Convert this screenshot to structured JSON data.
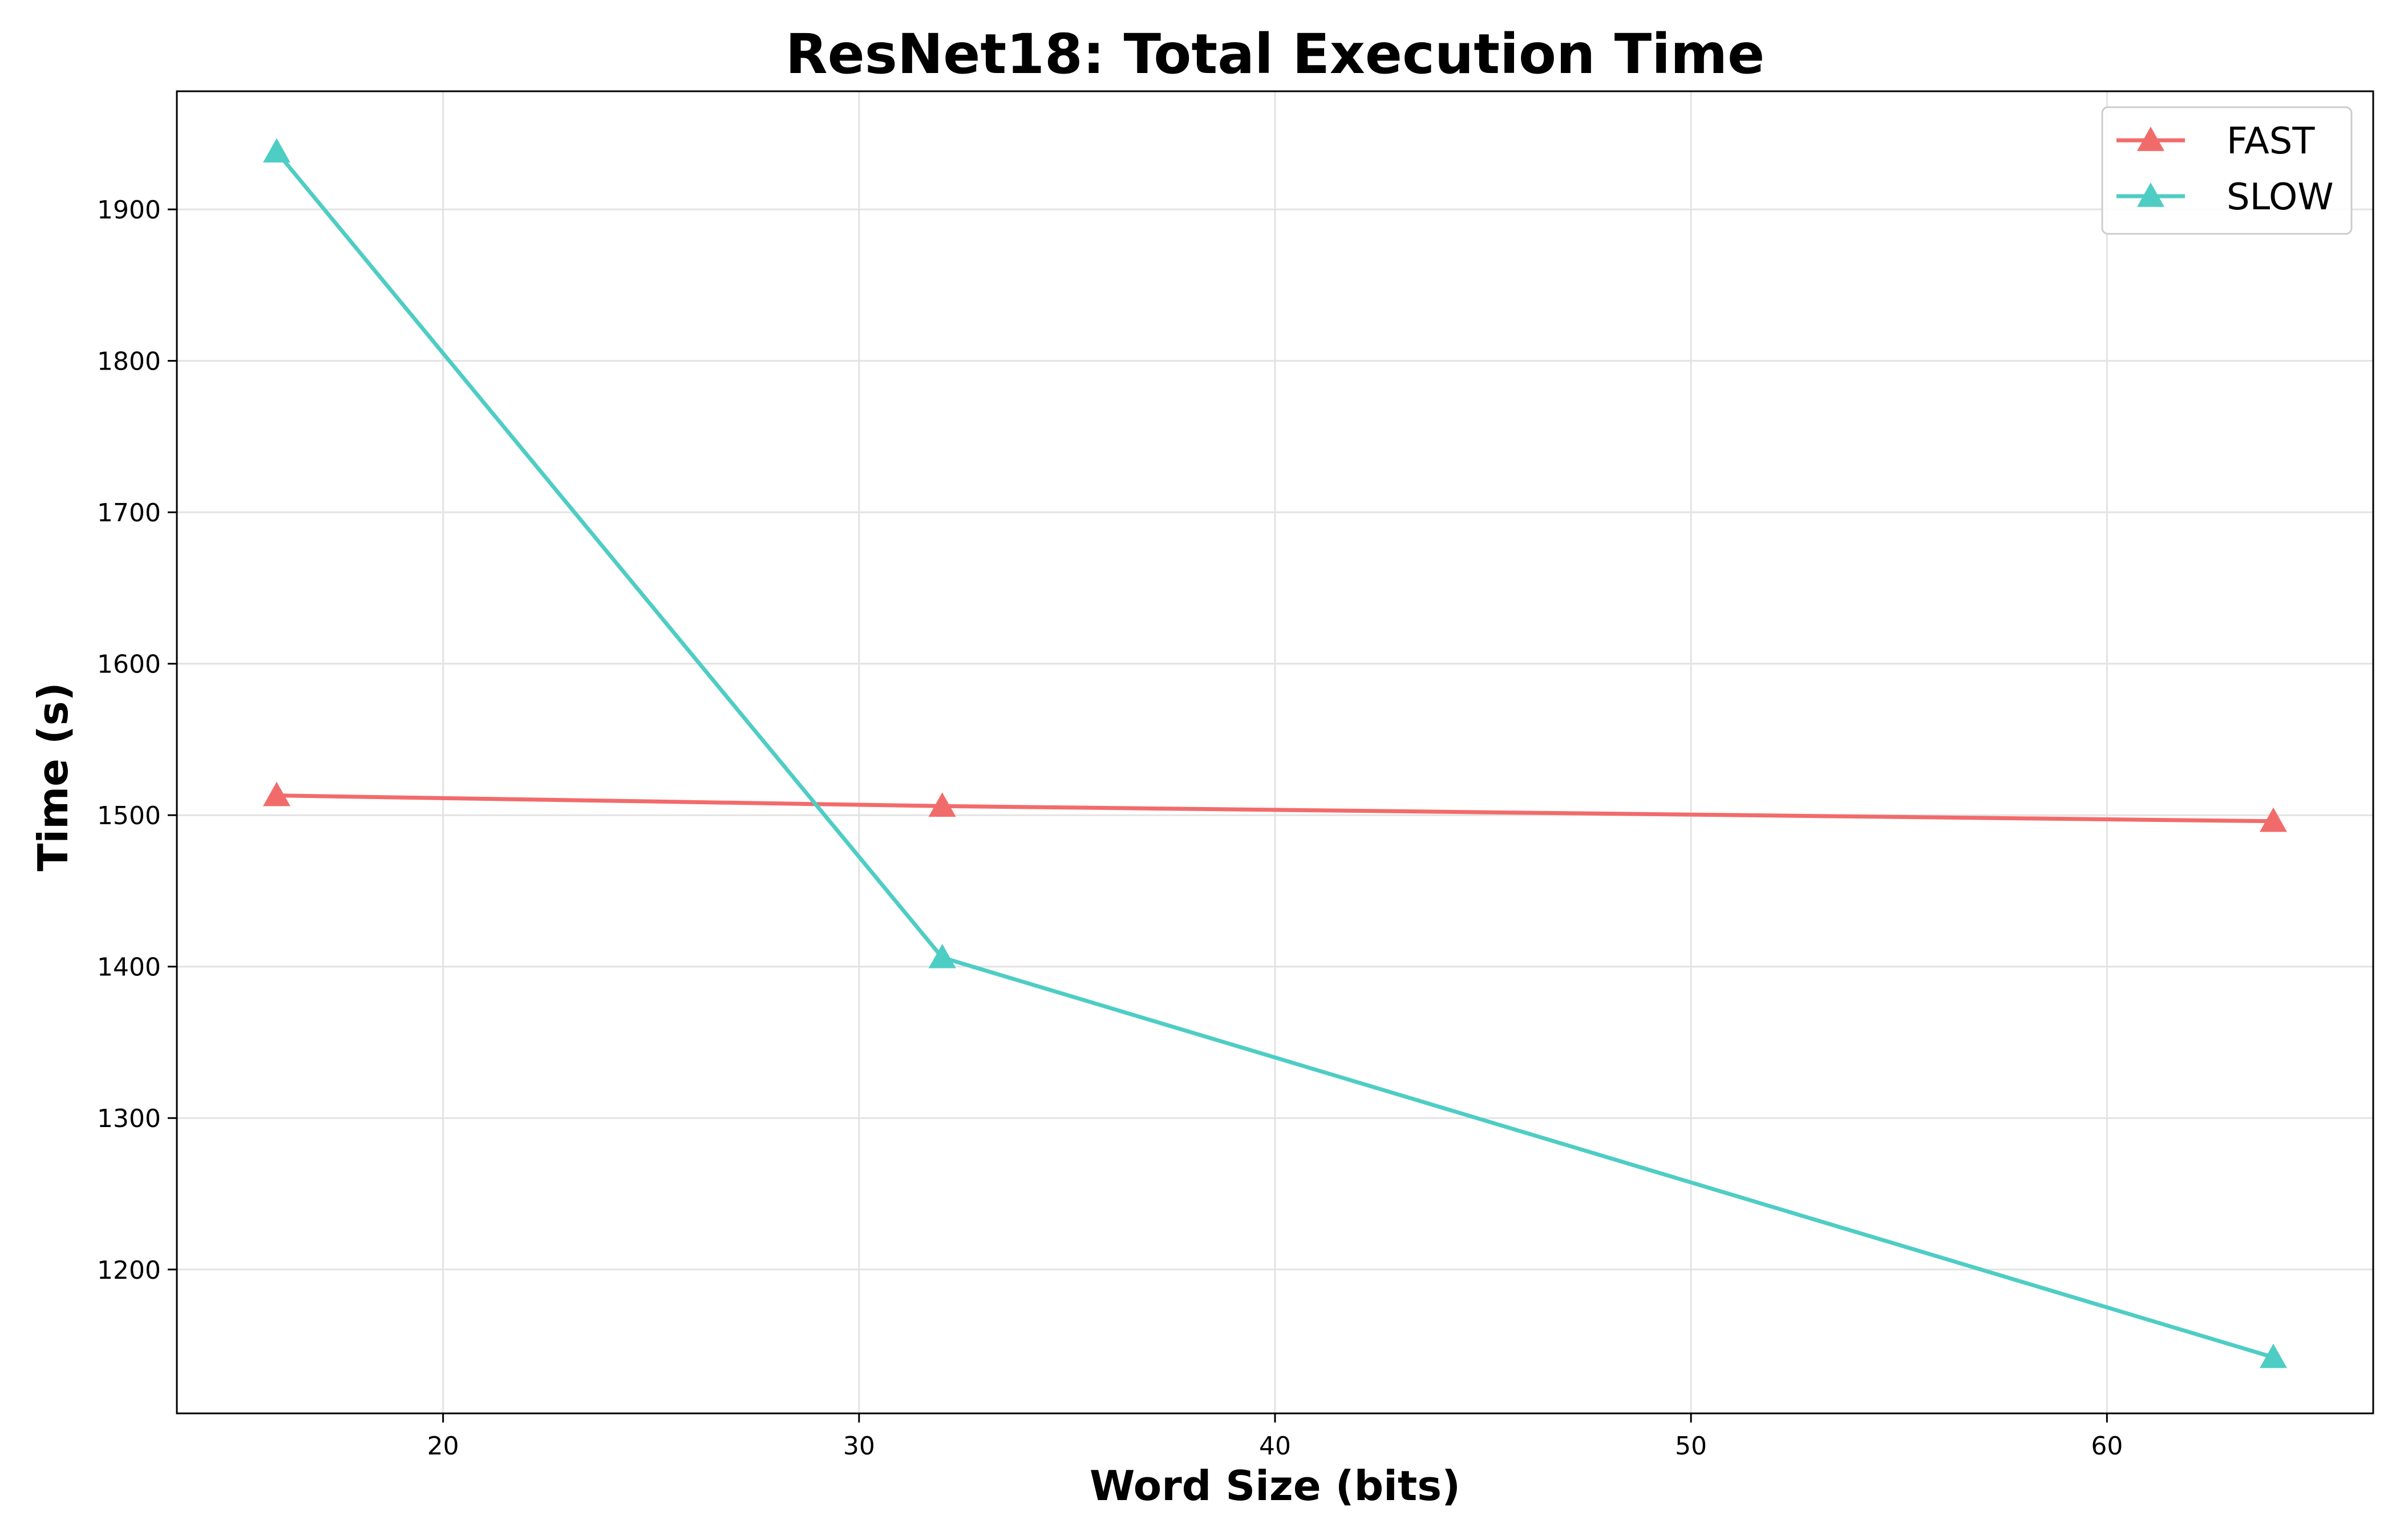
{
  "chart_data": {
    "type": "line",
    "title": "ResNet18: Total Execution Time",
    "xlabel": "Word Size (bits)",
    "ylabel": "Time (s)",
    "x": [
      16,
      32,
      64
    ],
    "xlim": [
      13.6,
      66.4
    ],
    "ylim": [
      1105,
      1978
    ],
    "xticks": [
      20,
      30,
      40,
      50,
      60
    ],
    "yticks": [
      1200,
      1300,
      1400,
      1500,
      1600,
      1700,
      1800,
      1900
    ],
    "grid": true,
    "legend_position": "top-right",
    "marker": "triangle-up",
    "series": [
      {
        "name": "FAST",
        "color": "#f26b6b",
        "values": [
          1513,
          1506,
          1496
        ]
      },
      {
        "name": "SLOW",
        "color": "#4ecdc4",
        "values": [
          1938,
          1406,
          1142
        ]
      }
    ]
  }
}
